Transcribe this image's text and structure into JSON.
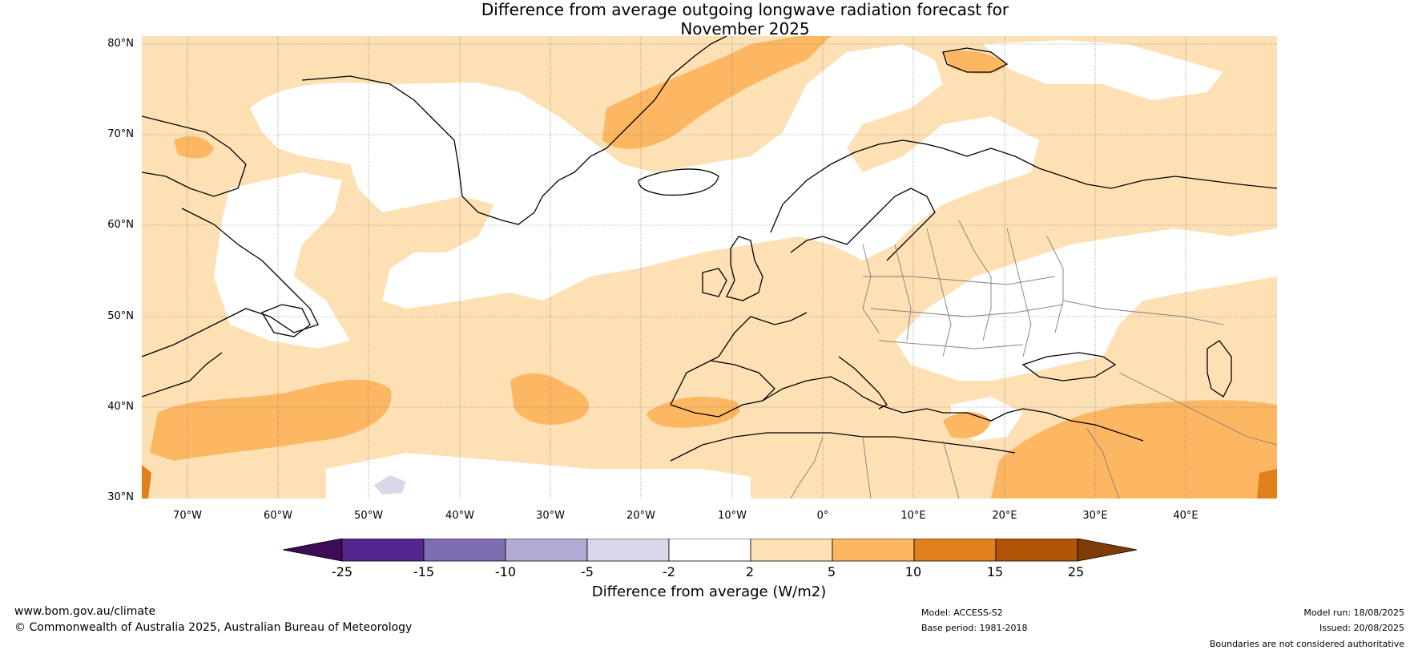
{
  "title": {
    "line1": "Difference from average outgoing longwave radiation forecast for",
    "line2": "November 2025"
  },
  "map": {
    "lat_ticks": [
      "80°N",
      "70°N",
      "60°N",
      "50°N",
      "40°N",
      "30°N"
    ],
    "lon_ticks": [
      "70°W",
      "60°W",
      "50°W",
      "40°W",
      "30°W",
      "20°W",
      "10°W",
      "0°",
      "10°E",
      "20°E",
      "30°E",
      "40°E"
    ],
    "extent": {
      "lon_min": -75,
      "lon_max": 50,
      "lat_min": 30,
      "lat_max": 81
    }
  },
  "colorbar": {
    "title": "Difference from average (W/m2)",
    "tick_labels": [
      "-25",
      "-15",
      "-10",
      "-5",
      "-2",
      "2",
      "5",
      "10",
      "15",
      "25"
    ],
    "colors": [
      "#3f0a56",
      "#54278f",
      "#7f6eaf",
      "#b3aad4",
      "#d9d8eb",
      "#ffffff",
      "#fde0b4",
      "#fdb661",
      "#e0801d",
      "#b25508",
      "#7f3b08"
    ]
  },
  "footer": {
    "url": "www.bom.gov.au/climate",
    "copyright": "© Commonwealth of Australia 2025, Australian Bureau of Meteorology",
    "model": "Model: ACCESS-S2",
    "base_period": "Base period: 1981-2018",
    "model_run": "Model run: 18/08/2025",
    "issued": "Issued: 20/08/2025",
    "disclaimer": "Boundaries are not considered authoritative"
  }
}
